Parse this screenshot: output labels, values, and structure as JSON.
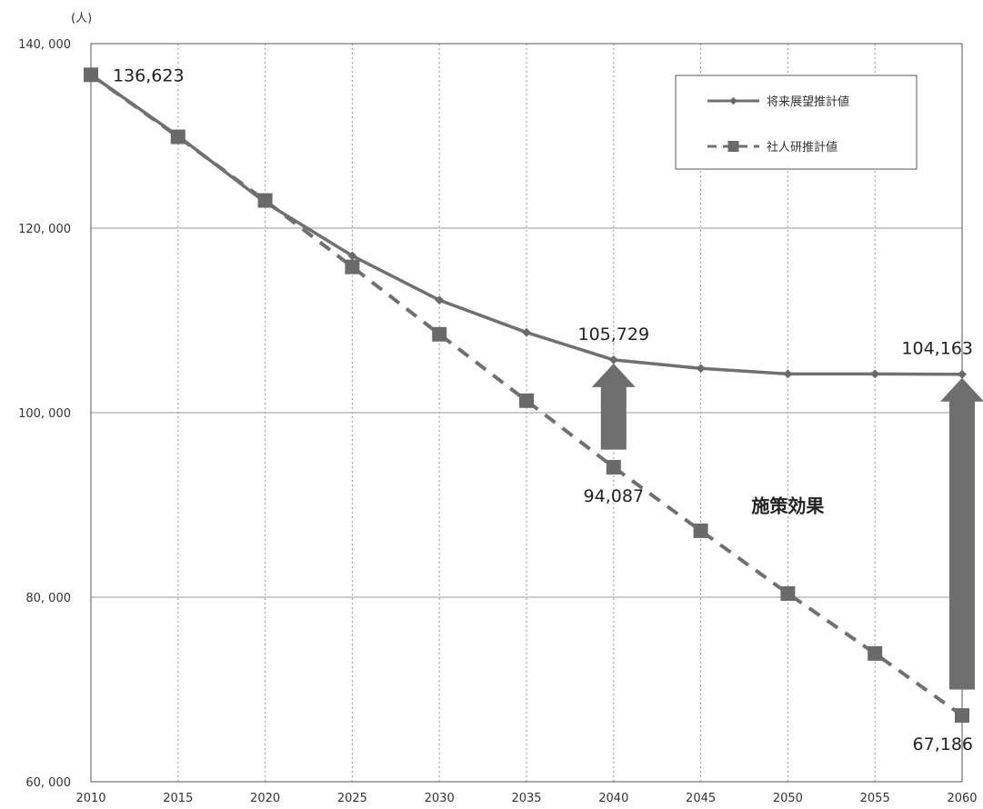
{
  "chart_data": {
    "type": "line",
    "unit_label": "(人)",
    "x": [
      2010,
      2015,
      2020,
      2025,
      2030,
      2035,
      2040,
      2045,
      2050,
      2055,
      2060
    ],
    "x_tick_labels": [
      "2010",
      "2015",
      "2020",
      "2025",
      "2030",
      "2035",
      "2040",
      "2045",
      "2050",
      "2055",
      "2060"
    ],
    "ylim": [
      60000,
      140000
    ],
    "y_ticks": [
      60000,
      80000,
      100000,
      120000,
      140000
    ],
    "y_tick_labels": [
      "60, 000",
      "80, 000",
      "100, 000",
      "120, 000",
      "140, 000"
    ],
    "grid": {
      "x": "dotted",
      "y": "solid"
    },
    "legend_position": "top-right",
    "series": [
      {
        "name": "将来展望推計値",
        "style": "solid",
        "marker": "small-diamond",
        "color": "#707070",
        "values": [
          136623,
          130000,
          122800,
          117000,
          112200,
          108700,
          105729,
          104800,
          104200,
          104200,
          104163
        ]
      },
      {
        "name": "社人研推計値",
        "style": "dashed",
        "marker": "square",
        "color": "#707070",
        "values": [
          136623,
          129900,
          123000,
          115800,
          108500,
          101300,
          94087,
          87200,
          80400,
          73900,
          67186
        ]
      }
    ],
    "annotations": [
      {
        "text": "136,623",
        "x": 2010,
        "y": 136623,
        "anchor": "right-of-point"
      },
      {
        "text": "105,729",
        "x": 2040,
        "y": 105729,
        "anchor": "above"
      },
      {
        "text": "94,087",
        "x": 2040,
        "y": 94087,
        "anchor": "below"
      },
      {
        "text": "104,163",
        "x": 2060,
        "y": 104163,
        "anchor": "above"
      },
      {
        "text": "67,186",
        "x": 2060,
        "y": 67186,
        "anchor": "below"
      }
    ],
    "arrows": [
      {
        "x": 2040,
        "from": 96000,
        "to": 105729
      },
      {
        "x": 2060,
        "from": 70000,
        "to": 104163
      }
    ],
    "effect_label": "施策効果",
    "arrow_color": "#6e6e6e"
  }
}
